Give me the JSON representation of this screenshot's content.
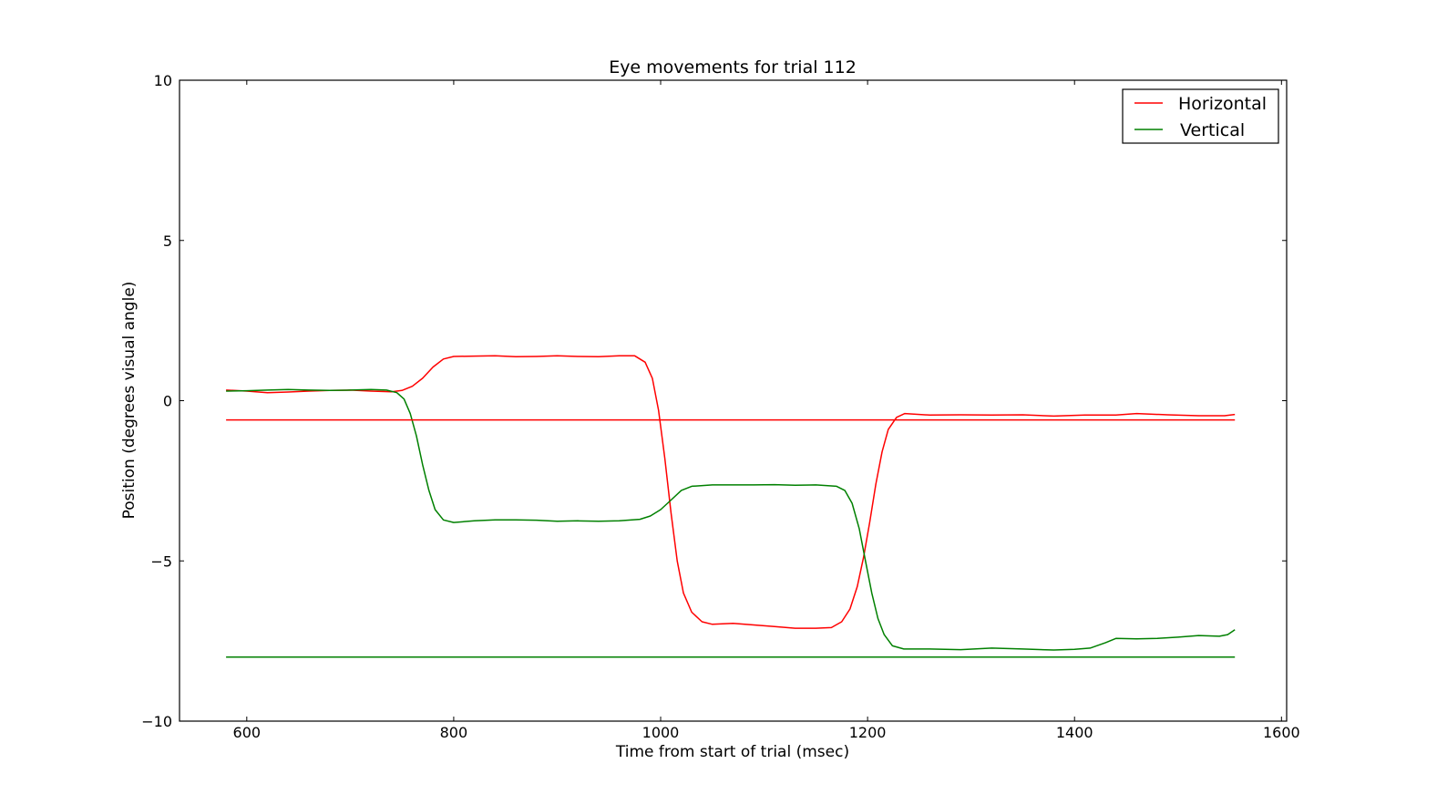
{
  "chart_data": {
    "type": "line",
    "title": "Eye movements for trial 112",
    "xlabel": "Time from start of trial (msec)",
    "ylabel": "Position (degrees visual angle)",
    "xlim": [
      535,
      1605
    ],
    "ylim": [
      -10,
      10
    ],
    "xticks": [
      600,
      800,
      1000,
      1200,
      1400,
      1600
    ],
    "yticks": [
      -10,
      -5,
      0,
      5,
      10
    ],
    "grid": false,
    "legend": "top-right",
    "series": [
      {
        "name": "Horizontal",
        "color": "#ff0000",
        "points": [
          [
            580,
            0.33
          ],
          [
            600,
            0.3
          ],
          [
            620,
            0.25
          ],
          [
            640,
            0.27
          ],
          [
            660,
            0.3
          ],
          [
            680,
            0.32
          ],
          [
            700,
            0.33
          ],
          [
            720,
            0.3
          ],
          [
            740,
            0.28
          ],
          [
            750,
            0.32
          ],
          [
            760,
            0.45
          ],
          [
            770,
            0.7
          ],
          [
            780,
            1.05
          ],
          [
            790,
            1.3
          ],
          [
            800,
            1.38
          ],
          [
            820,
            1.39
          ],
          [
            840,
            1.4
          ],
          [
            860,
            1.37
          ],
          [
            880,
            1.38
          ],
          [
            900,
            1.4
          ],
          [
            920,
            1.38
          ],
          [
            940,
            1.37
          ],
          [
            960,
            1.4
          ],
          [
            975,
            1.4
          ],
          [
            985,
            1.2
          ],
          [
            992,
            0.7
          ],
          [
            998,
            -0.3
          ],
          [
            1004,
            -1.8
          ],
          [
            1010,
            -3.5
          ],
          [
            1016,
            -5.0
          ],
          [
            1022,
            -6.0
          ],
          [
            1030,
            -6.6
          ],
          [
            1040,
            -6.9
          ],
          [
            1050,
            -6.98
          ],
          [
            1070,
            -6.95
          ],
          [
            1090,
            -7.0
          ],
          [
            1110,
            -7.05
          ],
          [
            1130,
            -7.1
          ],
          [
            1150,
            -7.1
          ],
          [
            1165,
            -7.08
          ],
          [
            1175,
            -6.9
          ],
          [
            1183,
            -6.5
          ],
          [
            1190,
            -5.8
          ],
          [
            1196,
            -4.9
          ],
          [
            1202,
            -3.8
          ],
          [
            1208,
            -2.6
          ],
          [
            1214,
            -1.6
          ],
          [
            1220,
            -0.9
          ],
          [
            1228,
            -0.52
          ],
          [
            1236,
            -0.4
          ],
          [
            1260,
            -0.45
          ],
          [
            1290,
            -0.44
          ],
          [
            1320,
            -0.45
          ],
          [
            1350,
            -0.44
          ],
          [
            1380,
            -0.48
          ],
          [
            1410,
            -0.45
          ],
          [
            1440,
            -0.45
          ],
          [
            1460,
            -0.4
          ],
          [
            1490,
            -0.44
          ],
          [
            1520,
            -0.47
          ],
          [
            1545,
            -0.47
          ],
          [
            1555,
            -0.43
          ]
        ]
      },
      {
        "name": "Vertical",
        "color": "#008000",
        "points": [
          [
            580,
            0.3
          ],
          [
            600,
            0.31
          ],
          [
            620,
            0.33
          ],
          [
            640,
            0.35
          ],
          [
            660,
            0.33
          ],
          [
            680,
            0.32
          ],
          [
            700,
            0.33
          ],
          [
            720,
            0.35
          ],
          [
            735,
            0.33
          ],
          [
            745,
            0.25
          ],
          [
            752,
            0.05
          ],
          [
            758,
            -0.4
          ],
          [
            764,
            -1.1
          ],
          [
            770,
            -2.0
          ],
          [
            776,
            -2.8
          ],
          [
            782,
            -3.4
          ],
          [
            790,
            -3.72
          ],
          [
            800,
            -3.8
          ],
          [
            820,
            -3.75
          ],
          [
            840,
            -3.72
          ],
          [
            860,
            -3.72
          ],
          [
            880,
            -3.73
          ],
          [
            900,
            -3.76
          ],
          [
            920,
            -3.75
          ],
          [
            940,
            -3.76
          ],
          [
            960,
            -3.75
          ],
          [
            980,
            -3.7
          ],
          [
            990,
            -3.6
          ],
          [
            1000,
            -3.4
          ],
          [
            1010,
            -3.1
          ],
          [
            1020,
            -2.8
          ],
          [
            1030,
            -2.67
          ],
          [
            1050,
            -2.63
          ],
          [
            1070,
            -2.63
          ],
          [
            1090,
            -2.63
          ],
          [
            1110,
            -2.62
          ],
          [
            1130,
            -2.64
          ],
          [
            1150,
            -2.63
          ],
          [
            1170,
            -2.67
          ],
          [
            1178,
            -2.8
          ],
          [
            1185,
            -3.2
          ],
          [
            1192,
            -4.0
          ],
          [
            1198,
            -5.0
          ],
          [
            1204,
            -6.0
          ],
          [
            1210,
            -6.8
          ],
          [
            1216,
            -7.3
          ],
          [
            1224,
            -7.65
          ],
          [
            1235,
            -7.75
          ],
          [
            1260,
            -7.75
          ],
          [
            1290,
            -7.77
          ],
          [
            1320,
            -7.72
          ],
          [
            1350,
            -7.75
          ],
          [
            1380,
            -7.78
          ],
          [
            1400,
            -7.76
          ],
          [
            1415,
            -7.72
          ],
          [
            1430,
            -7.55
          ],
          [
            1440,
            -7.42
          ],
          [
            1460,
            -7.43
          ],
          [
            1480,
            -7.42
          ],
          [
            1500,
            -7.38
          ],
          [
            1520,
            -7.33
          ],
          [
            1540,
            -7.35
          ],
          [
            1548,
            -7.3
          ],
          [
            1555,
            -7.15
          ]
        ]
      },
      {
        "name": "",
        "color": "#ff0000",
        "points": [
          [
            580,
            -0.6
          ],
          [
            1555,
            -0.6
          ]
        ]
      },
      {
        "name": "",
        "color": "#008000",
        "points": [
          [
            580,
            -8.0
          ],
          [
            1555,
            -8.0
          ]
        ]
      }
    ]
  }
}
